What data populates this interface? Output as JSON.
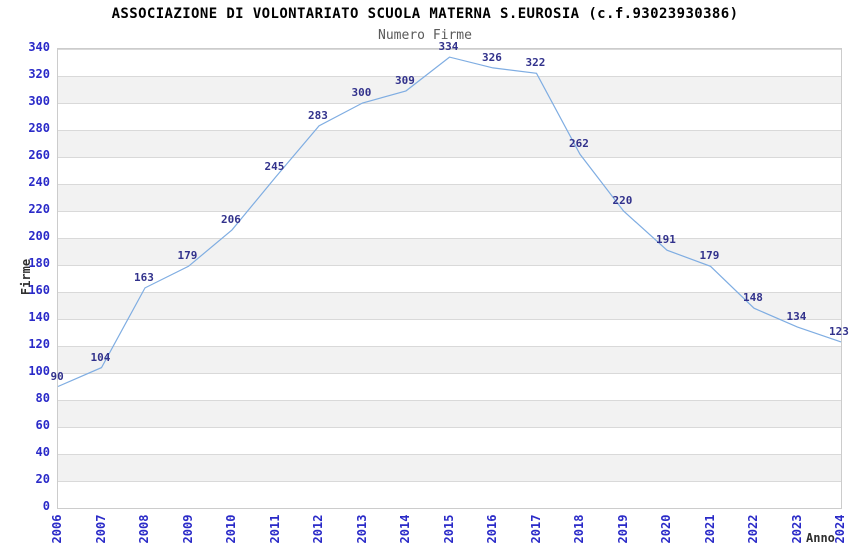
{
  "chart_data": {
    "type": "line",
    "title": "ASSOCIAZIONE DI VOLONTARIATO SCUOLA MATERNA S.EUROSIA (c.f.93023930386)",
    "subtitle": "Numero Firme",
    "xlabel": "Anno",
    "ylabel": "Firme",
    "categories": [
      "2006",
      "2007",
      "2008",
      "2009",
      "2010",
      "2011",
      "2012",
      "2013",
      "2014",
      "2015",
      "2016",
      "2017",
      "2018",
      "2019",
      "2020",
      "2021",
      "2022",
      "2023",
      "2024"
    ],
    "series": [
      {
        "name": "Numero Firme",
        "values": [
          90,
          104,
          163,
          179,
          206,
          245,
          283,
          300,
          309,
          334,
          326,
          322,
          262,
          220,
          191,
          179,
          148,
          134,
          123
        ]
      }
    ],
    "ylim": [
      0,
      340
    ],
    "ytick_step": 20,
    "grid": "horizontal-alternating-bands",
    "legend": "none",
    "markers": "none",
    "data_labels": "shown-above-points",
    "x_tick_rotation_deg": -90,
    "colors": {
      "line": "#7fade2",
      "data_label": "#32328c",
      "tick_label": "#2a2ac8",
      "axis_title": "#303030",
      "title": "#000000",
      "subtitle": "#5a5a5a",
      "band_gray": "#f2f2f2",
      "band_white": "#ffffff",
      "grid_line": "#d9d9d9",
      "plot_border": "#cccccc",
      "background": "#ffffff"
    }
  }
}
